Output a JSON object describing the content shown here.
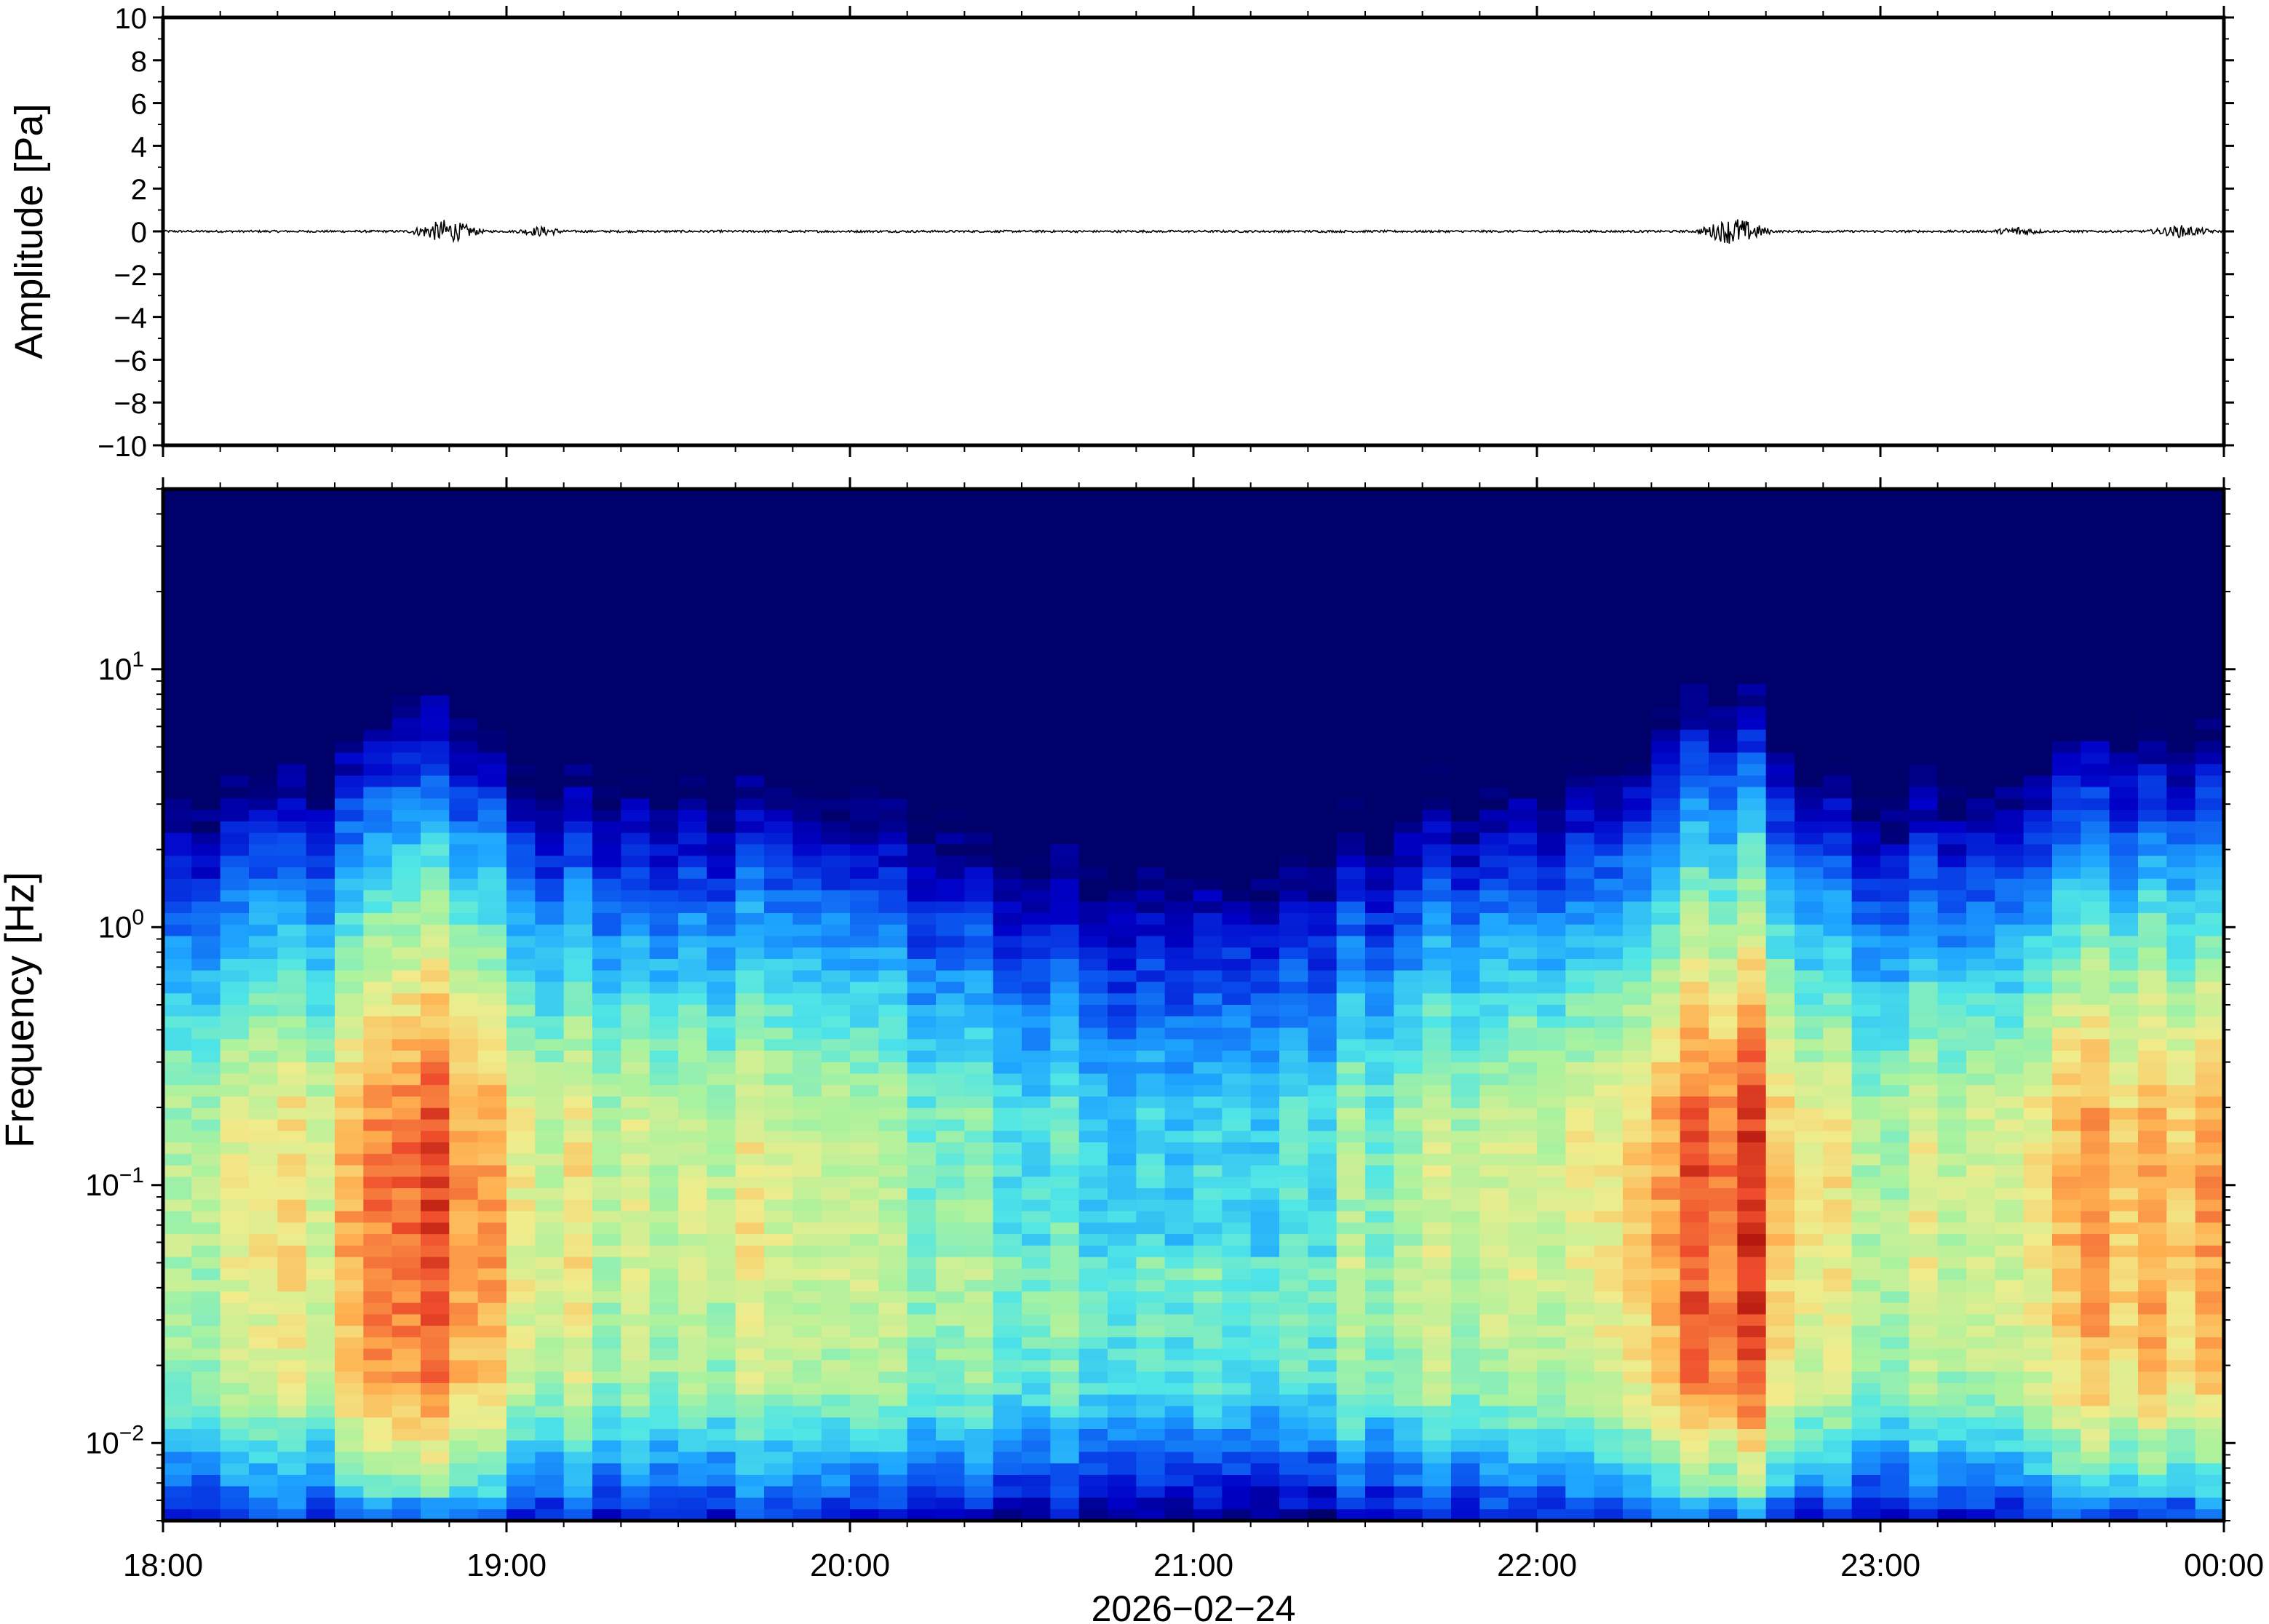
{
  "chart_data": [
    {
      "type": "line",
      "panel": "waveform",
      "ylabel": "Amplitude [Pa]",
      "ylim": [
        -10,
        10
      ],
      "yticks": [
        10,
        8,
        6,
        4,
        2,
        0,
        -2,
        -4,
        -6,
        -8,
        -10
      ],
      "ytick_labels": [
        "10",
        "8",
        "6",
        "4",
        "2",
        "0",
        "−2",
        "−4",
        "−6",
        "−8",
        "−10"
      ],
      "xlim_hours": [
        18,
        24
      ],
      "grid": false,
      "series_color": "#000000",
      "bursts": [
        {
          "start_hour": 18.7,
          "end_hour": 18.95,
          "peak_amplitude": 0.6
        },
        {
          "start_hour": 22.45,
          "end_hour": 22.7,
          "peak_amplitude": 0.7
        },
        {
          "start_hour": 19.0,
          "end_hour": 19.2,
          "peak_amplitude": 0.25
        },
        {
          "start_hour": 23.3,
          "end_hour": 23.5,
          "peak_amplitude": 0.25
        },
        {
          "start_hour": 23.75,
          "end_hour": 24.0,
          "peak_amplitude": 0.3
        }
      ]
    },
    {
      "type": "heatmap",
      "panel": "spectrogram",
      "ylabel": "Frequency [Hz]",
      "yscale": "log",
      "ylim": [
        0.005,
        50
      ],
      "yticks": [
        10,
        1,
        0.1,
        0.01
      ],
      "ytick_base": "10",
      "ytick_exponents": [
        "1",
        "0",
        "−1",
        "−2"
      ],
      "xlim_hours": [
        18,
        24
      ],
      "xticks_hours": [
        18,
        19,
        20,
        21,
        22,
        23,
        24
      ],
      "xtick_labels": [
        "18:00",
        "19:00",
        "20:00",
        "21:00",
        "22:00",
        "23:00",
        "00:00"
      ],
      "xlabel": "2026−02−24",
      "colormap": [
        "#00006a",
        "#0000c8",
        "#0a50ee",
        "#1ea6ff",
        "#50e6e6",
        "#aaf29e",
        "#f0ec8c",
        "#ffb050",
        "#ee4c2c",
        "#9a0000"
      ],
      "active_periods_hours": [
        {
          "center": 18.75,
          "width": 0.35,
          "strength": 0.85
        },
        {
          "center": 22.55,
          "width": 0.3,
          "strength": 1.0
        },
        {
          "center": 23.75,
          "width": 0.5,
          "strength": 0.6
        }
      ],
      "quiet_period_hours": [
        19.9,
        21.8
      ]
    }
  ]
}
